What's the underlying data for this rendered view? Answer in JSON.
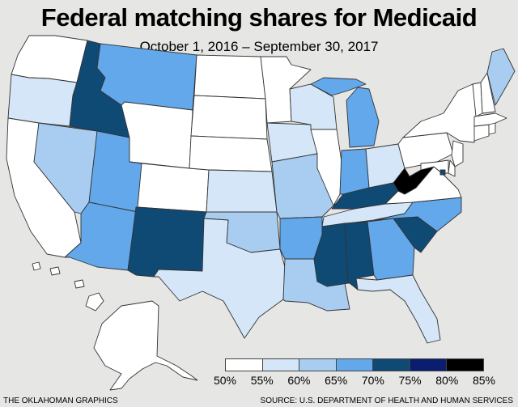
{
  "title": "Federal matching shares for Medicaid",
  "subtitle": "October 1, 2016 – September 30, 2017",
  "legend": {
    "colors": [
      "#ffffff",
      "#d4e6f7",
      "#a8cdf0",
      "#62a8ea",
      "#0f4a75",
      "#0a1d6e",
      "#000000"
    ],
    "ticks": [
      "50%",
      "55%",
      "60%",
      "65%",
      "70%",
      "75%",
      "80%",
      "85%"
    ]
  },
  "categories": {
    "white": "#ffffff",
    "light": "#d4e6f7",
    "mid": "#a8cdf0",
    "medium": "#62a8ea",
    "dark": "#0f4a75",
    "black": "#000000"
  },
  "state_shares": {
    "WA": "white",
    "OR": "light",
    "CA": "white",
    "NV": "mid",
    "ID": "dark",
    "MT": "medium",
    "WY": "white",
    "UT": "medium",
    "CO": "white",
    "AZ": "medium",
    "NM": "dark",
    "ND": "white",
    "SD": "white",
    "NE": "white",
    "KS": "light",
    "OK": "mid",
    "TX": "light",
    "MN": "white",
    "IA": "light",
    "MO": "mid",
    "AR": "medium",
    "LA": "mid",
    "WI": "light",
    "IL": "white",
    "MS": "dark",
    "MI": "medium",
    "IN": "medium",
    "OH": "light",
    "KY": "dark",
    "TN": "light",
    "AL": "dark",
    "GA": "medium",
    "FL": "light",
    "SC": "dark",
    "NC": "medium",
    "VA": "white",
    "WV": "black",
    "PA": "white",
    "NY": "white",
    "ME": "mid",
    "VT": "white",
    "NH": "white",
    "MA": "white",
    "RI": "white",
    "CT": "white",
    "NJ": "white",
    "DE": "white",
    "MD": "white",
    "DC": "dark",
    "AK": "white",
    "HI": "white"
  },
  "credits": {
    "left": "THE OKLAHOMAN GRAPHICS",
    "right": "SOURCE: U.S. DEPARTMENT OF HEALTH AND HUMAN SERVICES"
  }
}
